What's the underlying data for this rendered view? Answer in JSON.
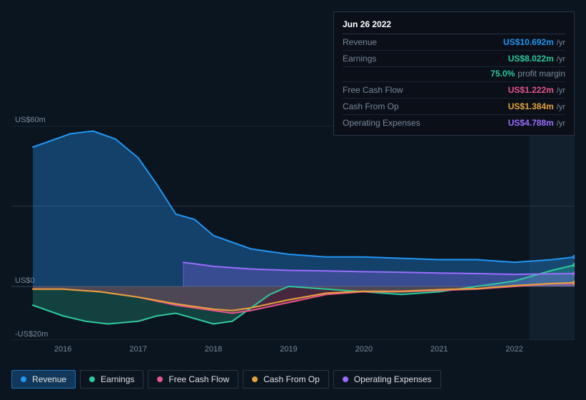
{
  "tooltip": {
    "date": "Jun 26 2022",
    "rows": [
      {
        "label": "Revenue",
        "value": "US$10.692m",
        "unit": "/yr",
        "color": "#2196f3"
      },
      {
        "label": "Earnings",
        "value": "US$8.022m",
        "unit": "/yr",
        "color": "#2dc99a",
        "sub_value": "75.0%",
        "sub_label": "profit margin"
      },
      {
        "label": "Free Cash Flow",
        "value": "US$1.222m",
        "unit": "/yr",
        "color": "#e6558b"
      },
      {
        "label": "Cash From Op",
        "value": "US$1.384m",
        "unit": "/yr",
        "color": "#e6a23c"
      },
      {
        "label": "Operating Expenses",
        "value": "US$4.788m",
        "unit": "/yr",
        "color": "#9b6dff"
      }
    ]
  },
  "chart": {
    "type": "area",
    "background_color": "#0b1520",
    "grid_color": "#2a3442",
    "text_color": "#7a8a9a",
    "font_size": 11,
    "ylim": [
      -20,
      60
    ],
    "y_ticks": [
      {
        "v": 60,
        "label": "US$60m"
      },
      {
        "v": 0,
        "label": "US$0"
      },
      {
        "v": -20,
        "label": "-US$20m"
      }
    ],
    "xlim": [
      2015.6,
      2022.8
    ],
    "x_ticks": [
      2016,
      2017,
      2018,
      2019,
      2020,
      2021,
      2022
    ],
    "highlight_region": {
      "start": 2022.2,
      "end": 2022.8,
      "color": "#1a2a38",
      "opacity": 0.5
    },
    "series": [
      {
        "name": "Revenue",
        "color": "#2196f3",
        "fill_opacity": 0.35,
        "line_width": 2,
        "points": [
          [
            2015.6,
            52
          ],
          [
            2015.9,
            55
          ],
          [
            2016.1,
            57
          ],
          [
            2016.4,
            58
          ],
          [
            2016.7,
            55
          ],
          [
            2017.0,
            48
          ],
          [
            2017.25,
            38
          ],
          [
            2017.5,
            27
          ],
          [
            2017.75,
            25
          ],
          [
            2018.0,
            19
          ],
          [
            2018.5,
            14
          ],
          [
            2019.0,
            12
          ],
          [
            2019.5,
            11
          ],
          [
            2020.0,
            11
          ],
          [
            2020.5,
            10.5
          ],
          [
            2021.0,
            10
          ],
          [
            2021.5,
            10
          ],
          [
            2022.0,
            9
          ],
          [
            2022.5,
            10
          ],
          [
            2022.8,
            11
          ]
        ]
      },
      {
        "name": "Earnings",
        "color": "#2dc99a",
        "fill_opacity": 0.25,
        "line_width": 2,
        "points": [
          [
            2015.6,
            -7
          ],
          [
            2016.0,
            -11
          ],
          [
            2016.3,
            -13
          ],
          [
            2016.6,
            -14
          ],
          [
            2017.0,
            -13
          ],
          [
            2017.25,
            -11
          ],
          [
            2017.5,
            -10
          ],
          [
            2017.75,
            -12
          ],
          [
            2018.0,
            -14
          ],
          [
            2018.25,
            -13
          ],
          [
            2018.5,
            -8
          ],
          [
            2018.75,
            -3
          ],
          [
            2019.0,
            0
          ],
          [
            2019.5,
            -1
          ],
          [
            2020.0,
            -2
          ],
          [
            2020.5,
            -3
          ],
          [
            2021.0,
            -2
          ],
          [
            2021.5,
            0
          ],
          [
            2022.0,
            2
          ],
          [
            2022.5,
            6
          ],
          [
            2022.8,
            8
          ]
        ]
      },
      {
        "name": "Free Cash Flow",
        "color": "#e6558b",
        "fill_opacity": 0.28,
        "line_width": 2,
        "points": [
          [
            2015.6,
            -1
          ],
          [
            2016.0,
            -1
          ],
          [
            2016.5,
            -2
          ],
          [
            2017.0,
            -4
          ],
          [
            2017.5,
            -7
          ],
          [
            2018.0,
            -9
          ],
          [
            2018.25,
            -10
          ],
          [
            2018.5,
            -9
          ],
          [
            2019.0,
            -6
          ],
          [
            2019.5,
            -3
          ],
          [
            2020.0,
            -2
          ],
          [
            2020.5,
            -2
          ],
          [
            2021.0,
            -1.5
          ],
          [
            2021.5,
            -1
          ],
          [
            2022.0,
            0
          ],
          [
            2022.5,
            1
          ],
          [
            2022.8,
            1.2
          ]
        ]
      },
      {
        "name": "Cash From Op",
        "color": "#e6a23c",
        "fill_opacity": 0.0,
        "line_width": 2,
        "points": [
          [
            2015.6,
            -1
          ],
          [
            2016.0,
            -1
          ],
          [
            2016.5,
            -2
          ],
          [
            2017.0,
            -4
          ],
          [
            2017.5,
            -6.5
          ],
          [
            2018.0,
            -8.5
          ],
          [
            2018.25,
            -9
          ],
          [
            2018.5,
            -8
          ],
          [
            2019.0,
            -5
          ],
          [
            2019.5,
            -2.5
          ],
          [
            2020.0,
            -1.8
          ],
          [
            2020.5,
            -1.8
          ],
          [
            2021.0,
            -1.2
          ],
          [
            2021.5,
            -0.8
          ],
          [
            2022.0,
            0.3
          ],
          [
            2022.5,
            1.1
          ],
          [
            2022.8,
            1.4
          ]
        ]
      },
      {
        "name": "Operating Expenses",
        "color": "#9b6dff",
        "fill_opacity": 0.28,
        "line_width": 2,
        "start_x": 2017.6,
        "points": [
          [
            2017.6,
            9
          ],
          [
            2018.0,
            7.5
          ],
          [
            2018.5,
            6.5
          ],
          [
            2019.0,
            6
          ],
          [
            2019.5,
            5.8
          ],
          [
            2020.0,
            5.5
          ],
          [
            2020.5,
            5.3
          ],
          [
            2021.0,
            5
          ],
          [
            2021.5,
            4.8
          ],
          [
            2022.0,
            4.5
          ],
          [
            2022.5,
            4.7
          ],
          [
            2022.8,
            4.8
          ]
        ]
      }
    ]
  },
  "legend": {
    "items": [
      {
        "label": "Revenue",
        "color": "#2196f3",
        "active": true
      },
      {
        "label": "Earnings",
        "color": "#2dc99a",
        "active": false
      },
      {
        "label": "Free Cash Flow",
        "color": "#e6558b",
        "active": false
      },
      {
        "label": "Cash From Op",
        "color": "#e6a23c",
        "active": false
      },
      {
        "label": "Operating Expenses",
        "color": "#9b6dff",
        "active": false
      }
    ]
  }
}
